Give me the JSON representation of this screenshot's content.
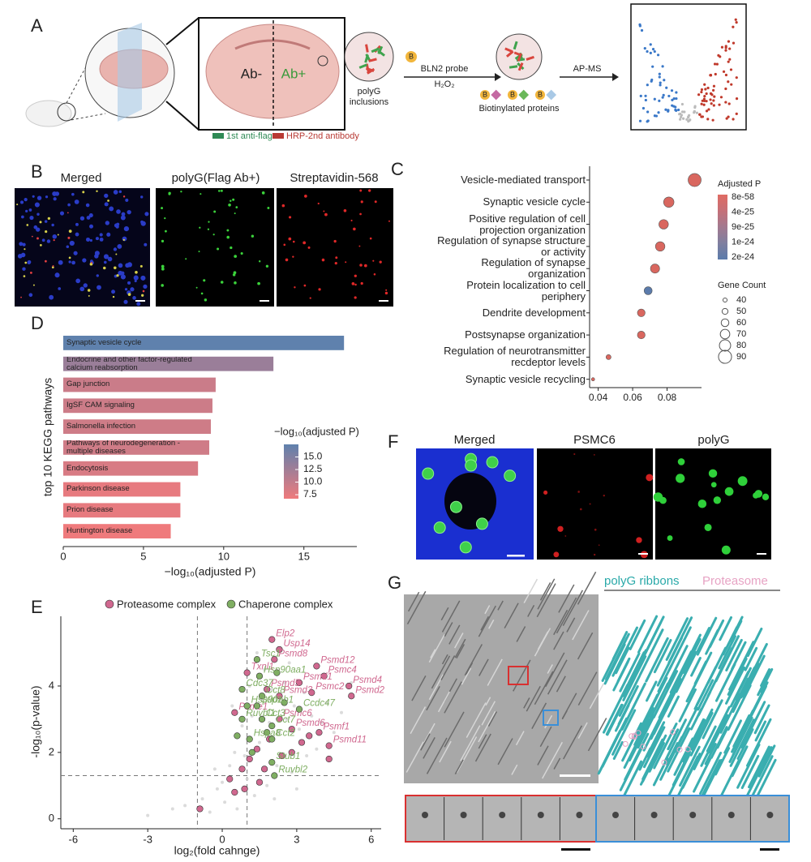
{
  "panel_labels": [
    "A",
    "B",
    "C",
    "D",
    "E",
    "F",
    "G"
  ],
  "panel_a": {
    "ab_minus": "Ab-",
    "ab_plus": "Ab+",
    "inclusions": [
      "polyG",
      "inclusions"
    ],
    "probe": "BLN2 probe",
    "reagent": "H₂O₂",
    "biotin": "B",
    "proteins": "Biotinylated proteins",
    "method": "AP-MS",
    "antibody_1": "1st anti-flag",
    "antibody_2": "HRP-2nd antibody"
  },
  "panel_b": {
    "titles": [
      "Merged",
      "polyG(Flag Ab+)",
      "Streptavidin-568"
    ]
  },
  "panel_f": {
    "titles": [
      "Merged",
      "PSMC6",
      "polyG"
    ]
  },
  "panel_g": {
    "legend": [
      "polyG ribbons",
      "Proteasome"
    ]
  },
  "chart_data": [
    {
      "type": "dot",
      "categories": [
        "Vesicle-mediated transport",
        "Synaptic vesicle cycle",
        "Positive regulation of cell\nprojection organization",
        "Regulation of synapse structure\nor activity",
        "Regulation of synapse\norganization",
        "Protein localization to cell\nperiphery",
        "Dendrite development",
        "Postsynapse organization",
        "Regulation of neurotransmitter\nrecdeptor levels",
        "Synaptic vesicle recycling"
      ],
      "values": [
        0.096,
        0.081,
        0.078,
        0.076,
        0.073,
        0.069,
        0.065,
        0.065,
        0.046,
        0.037
      ],
      "sizes": [
        90,
        75,
        70,
        70,
        68,
        62,
        60,
        60,
        45,
        35
      ],
      "colors": [
        "#d9675f",
        "#d9675f",
        "#d9675f",
        "#d9675f",
        "#d9675f",
        "#5b7bab",
        "#d9675f",
        "#d9675f",
        "#d9675f",
        "#d9675f"
      ],
      "xlim": [
        0.035,
        0.1
      ],
      "xticks": [
        0.04,
        0.06,
        0.08
      ],
      "color_legend_title": "Adjusted P",
      "color_legend_labels": [
        "8e-58",
        "4e-25",
        "9e-25",
        "1e-24",
        "2e-24"
      ],
      "color_legend_colors": [
        "#e06b63",
        "#c57078",
        "#a2798f",
        "#7f7f9f",
        "#5b7bab"
      ],
      "size_legend_title": "Gene Count",
      "size_legend_values": [
        40,
        50,
        60,
        70,
        80,
        90
      ]
    },
    {
      "type": "hbar",
      "categories": [
        "Synaptic vesicle cycle",
        "Endocrine and other factor-regulated\ncalcium reabsorption",
        "Gap junction",
        "IgSF CAM signaling",
        "Salmonella infection",
        "Pathways of neurodegeneration -\nmultiple diseases",
        "Endocytosis",
        "Parkinson disease",
        "Prion disease",
        "Huntington disease"
      ],
      "values": [
        17.5,
        13.1,
        9.5,
        9.3,
        9.2,
        9.1,
        8.4,
        7.3,
        7.3,
        6.7
      ],
      "xlim": [
        0,
        18.3
      ],
      "xticks": [
        0,
        5,
        10,
        15
      ],
      "xlabel": "−log₁₀(adjusted P)",
      "ylabel": "top 10 KEGG pathways",
      "colorbar_title": "−log₁₀(adjusted P)",
      "colorbar_ticks": [
        7.5,
        {
          "value": 10,
          "label": "10.0"
        },
        12.5,
        {
          "value": 15,
          "label": "15.0"
        }
      ],
      "colormap": [
        "#ef7a7c",
        "#5f81ad"
      ]
    },
    {
      "type": "scatter",
      "series": [
        {
          "color": "#d2d2d2",
          "x": [
            -1.5,
            -0.8,
            -0.5,
            -0.2,
            0.1,
            0.3,
            0.5,
            0.6,
            0.8,
            1.0,
            1.2,
            1.3,
            1.5,
            1.6,
            1.8,
            1.9,
            2.0,
            2.2,
            2.3,
            2.5,
            2.6,
            2.8,
            2.9,
            3.1,
            3.3,
            3.4,
            3.6,
            3.8,
            4.0,
            4.2,
            4.5,
            4.8,
            5.2,
            -2.0,
            -3.0,
            0.0,
            0.9,
            1.1,
            1.7,
            2.7,
            3.0,
            0.4,
            -0.3,
            2.1,
            1.4
          ],
          "values": [
            0.4,
            0.6,
            0.2,
            0.9,
            0.5,
            1.6,
            2.0,
            0.3,
            2.8,
            1.2,
            3.1,
            0.7,
            2.3,
            3.6,
            1.0,
            2.9,
            3.9,
            1.6,
            2.6,
            4.1,
            3.0,
            1.4,
            3.4,
            2.7,
            3.8,
            1.9,
            3.1,
            2.1,
            2.9,
            3.5,
            2.6,
            3.2,
            4.1,
            0.3,
            0.1,
            1.1,
            1.9,
            4.0,
            4.5,
            4.7,
            0.9,
            3.4,
            1.5,
            0.6,
            5.0
          ]
        },
        {
          "name": "Proteasome complex",
          "color": "#d0688f",
          "x": [
            2.0,
            2.3,
            3.8,
            2.1,
            4.1,
            3.1,
            5.1,
            3.6,
            5.2,
            2.3,
            1.8,
            0.5,
            2.3,
            2.8,
            3.9,
            4.3,
            1.0,
            -0.9,
            0.3,
            0.5,
            0.8,
            1.1,
            1.4,
            1.7,
            1.9,
            2.4,
            2.8,
            3.2,
            0.9,
            1.5,
            4.3,
            3.5
          ],
          "values": [
            5.4,
            5.1,
            4.6,
            4.8,
            4.3,
            4.1,
            4.0,
            3.8,
            3.7,
            3.7,
            3.9,
            3.2,
            3.0,
            2.7,
            2.6,
            2.2,
            4.4,
            0.3,
            1.2,
            0.8,
            1.5,
            1.8,
            2.1,
            1.5,
            2.4,
            1.9,
            2.0,
            2.3,
            0.9,
            1.1,
            1.8,
            2.5
          ],
          "labels": [
            "Elp2",
            "Usp14",
            "Psmd12",
            "Psmd8",
            "Psmc4",
            "Psmd1",
            "Psmd4",
            "Psmc2",
            "Psmd2",
            "Psmd3",
            "Psmd5",
            "Psme1",
            "Psmc6",
            "Psmd6",
            "Psmf1",
            "Psmd11",
            "Txnl1",
            null,
            null,
            null,
            null,
            null,
            null,
            null,
            null,
            null,
            null,
            null,
            null,
            null,
            null,
            null
          ]
        },
        {
          "name": "Chaperone complex",
          "color": "#7fae62",
          "x": [
            1.4,
            1.5,
            0.8,
            1.6,
            1.0,
            1.4,
            0.8,
            1.6,
            3.1,
            2.0,
            1.1,
            2.0,
            2.0,
            2.1,
            1.2,
            1.8,
            2.5,
            0.6,
            2.2
          ],
          "values": [
            4.8,
            4.3,
            3.9,
            3.7,
            3.4,
            3.4,
            3.0,
            3.0,
            3.3,
            2.8,
            2.4,
            2.4,
            1.7,
            1.3,
            2.0,
            2.6,
            3.5,
            2.5,
            4.4
          ],
          "labels": [
            "Tsc1",
            "Hsp90aa1",
            "Cdc37",
            "Cct8",
            "Hsp90ab1",
            "Stip1",
            "Ruvbl1",
            "Cct3",
            "Ccdc47",
            "Cct7",
            "Hspa8",
            "Cct2",
            "Stub1",
            "Ruvbl2",
            null,
            null,
            null,
            null,
            null
          ]
        }
      ],
      "xlim": [
        -6.5,
        6.4
      ],
      "ylim": [
        -0.3,
        6.1
      ],
      "xticks": [
        -6,
        -3,
        0,
        3,
        6
      ],
      "yticks": [
        0,
        2,
        4
      ],
      "xlabel": "log₂(fold cahnge)",
      "ylabel": "-log₁₀(p-value)",
      "vlines": [
        -1,
        1
      ],
      "hlines": [
        1.3
      ]
    }
  ]
}
